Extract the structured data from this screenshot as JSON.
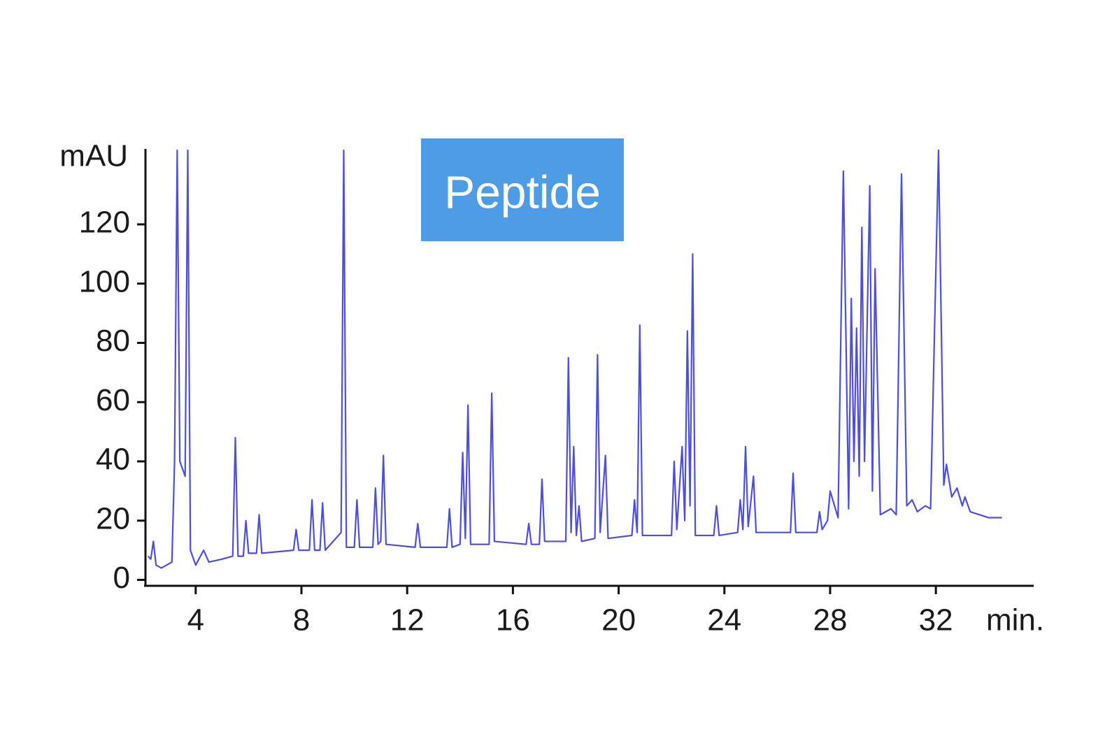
{
  "chart_data": {
    "type": "line",
    "annotation": "Peptide",
    "y_label": "mAU",
    "x_label": "min.",
    "color": "#3b3bd6",
    "xlim": [
      2.1,
      35.7
    ],
    "ylim": [
      -2,
      145
    ],
    "xticks": [
      4,
      8,
      12,
      16,
      20,
      24,
      28,
      32
    ],
    "yticks": [
      0,
      20,
      40,
      60,
      80,
      100,
      120
    ],
    "x": [
      2.2,
      2.3,
      2.4,
      2.5,
      2.7,
      3.1,
      3.2,
      3.3,
      3.4,
      3.6,
      3.7,
      3.8,
      4.0,
      4.3,
      4.5,
      5.0,
      5.4,
      5.5,
      5.6,
      5.8,
      5.9,
      6.0,
      6.3,
      6.4,
      6.5,
      7.7,
      7.8,
      7.9,
      8.3,
      8.4,
      8.5,
      8.7,
      8.8,
      8.9,
      9.5,
      9.6,
      9.7,
      10.0,
      10.1,
      10.2,
      10.7,
      10.8,
      10.9,
      11.0,
      11.1,
      11.2,
      12.3,
      12.4,
      12.5,
      13.5,
      13.6,
      13.7,
      14.0,
      14.1,
      14.2,
      14.3,
      14.4,
      15.1,
      15.2,
      15.3,
      16.5,
      16.6,
      16.7,
      17.0,
      17.1,
      17.2,
      18.0,
      18.1,
      18.2,
      18.3,
      18.4,
      18.5,
      18.6,
      19.1,
      19.2,
      19.3,
      19.5,
      19.6,
      20.5,
      20.6,
      20.7,
      20.8,
      20.9,
      22.0,
      22.1,
      22.2,
      22.4,
      22.5,
      22.6,
      22.7,
      22.8,
      22.9,
      23.6,
      23.7,
      23.8,
      24.5,
      24.6,
      24.7,
      24.8,
      24.9,
      25.1,
      25.2,
      26.5,
      26.6,
      26.7,
      27.5,
      27.6,
      27.7,
      27.9,
      28.0,
      28.3,
      28.5,
      28.7,
      28.8,
      28.9,
      29.0,
      29.1,
      29.2,
      29.3,
      29.5,
      29.6,
      29.7,
      29.9,
      30.3,
      30.5,
      30.7,
      30.9,
      31.1,
      31.3,
      31.6,
      31.8,
      32.1,
      32.3,
      32.4,
      32.6,
      32.8,
      33.0,
      33.1,
      33.3,
      34.0,
      34.5
    ],
    "values": [
      8,
      7,
      13,
      5,
      4,
      6,
      40,
      145,
      40,
      35,
      145,
      10,
      5,
      10,
      6,
      7,
      8,
      48,
      8,
      8,
      20,
      9,
      9,
      22,
      9,
      10,
      17,
      10,
      10,
      27,
      10,
      10,
      26,
      10,
      16,
      145,
      11,
      11,
      27,
      11,
      11,
      31,
      12,
      13,
      42,
      12,
      11,
      19,
      11,
      11,
      24,
      11,
      12,
      43,
      14,
      59,
      12,
      12,
      63,
      13,
      12,
      19,
      12,
      12,
      34,
      13,
      13,
      75,
      16,
      45,
      15,
      25,
      13,
      14,
      76,
      16,
      42,
      14,
      15,
      27,
      16,
      86,
      15,
      15,
      40,
      17,
      45,
      20,
      84,
      25,
      110,
      15,
      15,
      25,
      15,
      16,
      27,
      17,
      45,
      18,
      35,
      16,
      16,
      36,
      16,
      16,
      23,
      17,
      20,
      30,
      21,
      138,
      24,
      95,
      40,
      85,
      35,
      119,
      40,
      133,
      30,
      105,
      22,
      24,
      22,
      137,
      25,
      27,
      23,
      25,
      24,
      145,
      32,
      39,
      28,
      31,
      25,
      28,
      23,
      21,
      21
    ]
  }
}
